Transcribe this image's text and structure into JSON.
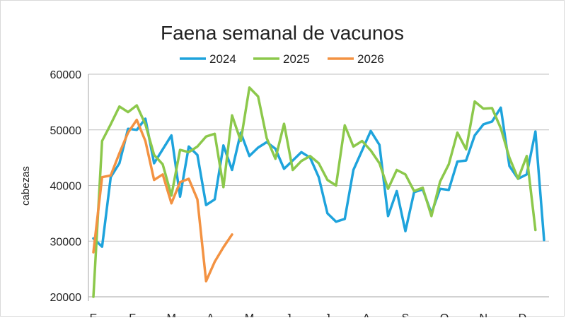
{
  "chart_data": {
    "type": "line",
    "title": "Faena semanal de vacunos",
    "xlabel": "",
    "ylabel": "cabezas",
    "ylim": [
      20000,
      60000
    ],
    "yticks": [
      20000,
      30000,
      40000,
      50000,
      60000
    ],
    "ytick_labels": [
      "20000",
      "30000",
      "40000",
      "50000",
      "60000"
    ],
    "grid": true,
    "legend": "top",
    "x_unit": "week of year",
    "xlim": [
      1,
      53
    ],
    "month_ticks": [
      {
        "label": "E",
        "week": 1
      },
      {
        "label": "F",
        "week": 5.5
      },
      {
        "label": "M",
        "week": 10
      },
      {
        "label": "A",
        "week": 14.5
      },
      {
        "label": "M",
        "week": 19
      },
      {
        "label": "J",
        "week": 23.5
      },
      {
        "label": "J",
        "week": 28
      },
      {
        "label": "A",
        "week": 32.5
      },
      {
        "label": "S",
        "week": 37
      },
      {
        "label": "O",
        "week": 41.5
      },
      {
        "label": "N",
        "week": 46
      },
      {
        "label": "D",
        "week": 50.5
      }
    ],
    "series": [
      {
        "name": "2024",
        "color": "#1ea3dc",
        "x": [
          1,
          2,
          3,
          4,
          5,
          6,
          7,
          8,
          9,
          10,
          11,
          12,
          13,
          14,
          15,
          16,
          17,
          18,
          19,
          20,
          21,
          22,
          23,
          24,
          25,
          26,
          27,
          28,
          29,
          30,
          31,
          32,
          33,
          34,
          35,
          36,
          37,
          38,
          39,
          40,
          41,
          42,
          43,
          44,
          45,
          46,
          47,
          48,
          49,
          50,
          51,
          52,
          53
        ],
        "values": [
          30500,
          29000,
          41500,
          44000,
          50200,
          50000,
          52000,
          44000,
          46500,
          49000,
          38000,
          47000,
          45500,
          36500,
          37500,
          47200,
          42800,
          49500,
          45300,
          46800,
          47800,
          46600,
          43000,
          44500,
          46000,
          45000,
          41500,
          35000,
          33500,
          34000,
          42800,
          46300,
          49800,
          47300,
          34500,
          39000,
          31800,
          38800,
          39300,
          35000,
          39400,
          39200,
          44300,
          44500,
          49000,
          51000,
          51500,
          54000,
          43500,
          41200,
          42000,
          49700,
          30200
        ]
      },
      {
        "name": "2025",
        "color": "#8cc84b",
        "x": [
          1,
          2,
          3,
          4,
          5,
          6,
          7,
          8,
          9,
          10,
          11,
          12,
          13,
          14,
          15,
          16,
          17,
          18,
          19,
          20,
          21,
          22,
          23,
          24,
          25,
          26,
          27,
          28,
          29,
          30,
          31,
          32,
          33,
          34,
          35,
          36,
          37,
          38,
          39,
          40,
          41,
          42,
          43,
          44,
          45,
          46,
          47,
          48,
          49,
          50,
          51,
          52
        ],
        "values": [
          20000,
          48000,
          51000,
          54200,
          53200,
          54400,
          51000,
          45500,
          43800,
          38200,
          46400,
          46000,
          47000,
          48800,
          49300,
          39700,
          52600,
          48000,
          57600,
          56000,
          48500,
          44800,
          51100,
          42800,
          44400,
          45300,
          44000,
          41000,
          40000,
          50800,
          47000,
          48000,
          46300,
          44000,
          39400,
          42800,
          42000,
          39000,
          39600,
          34500,
          40700,
          43800,
          49500,
          46500,
          55100,
          53800,
          53900,
          50300,
          45000,
          41200,
          45300,
          32000
        ]
      },
      {
        "name": "2026",
        "color": "#f39242",
        "x": [
          1,
          2,
          3,
          4,
          5,
          6,
          7,
          8,
          9,
          10,
          11,
          12,
          13,
          14,
          15,
          16,
          17,
          18
        ],
        "values": [
          28000,
          41500,
          41800,
          45800,
          49500,
          51800,
          48000,
          41000,
          42000,
          36800,
          40600,
          41200,
          37500,
          22800,
          26300,
          28900,
          31200,
          null
        ]
      }
    ]
  }
}
